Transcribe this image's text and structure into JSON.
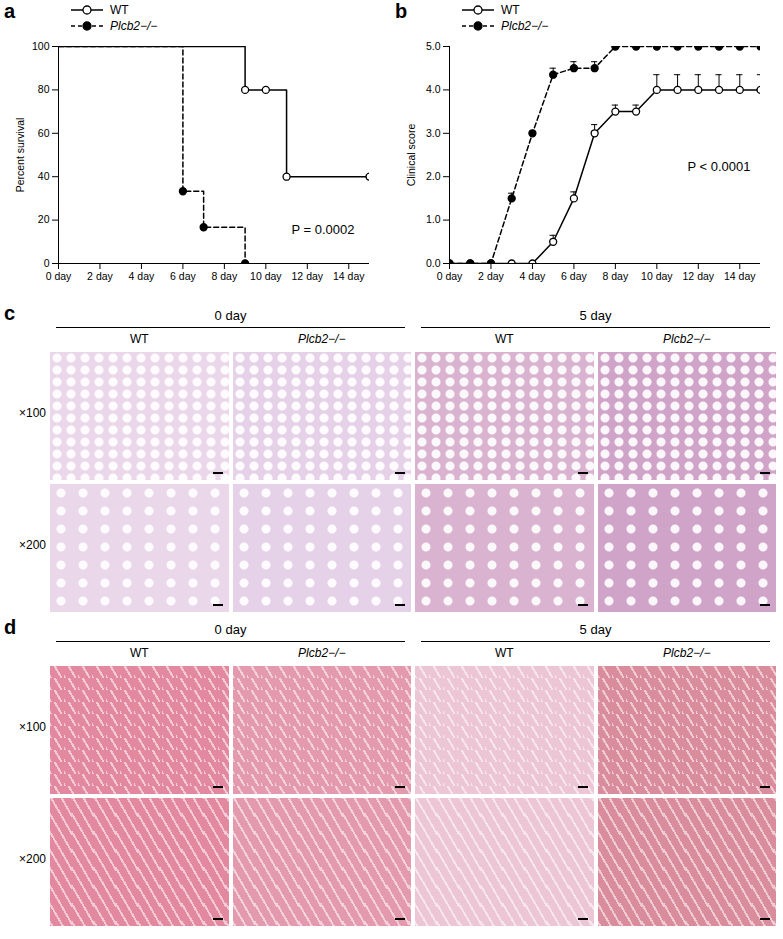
{
  "chart_data": [
    {
      "label": "a",
      "type": "survival",
      "ylabel": "Percent survival",
      "xlim": [
        0,
        15
      ],
      "xticks": [
        {
          "value": 0,
          "label": "0 day"
        },
        {
          "value": 2,
          "label": "2 day"
        },
        {
          "value": 4,
          "label": "4 day"
        },
        {
          "value": 6,
          "label": "6 day"
        },
        {
          "value": 8,
          "label": "8 day"
        },
        {
          "value": 10,
          "label": "10 day"
        },
        {
          "value": 12,
          "label": "12 day"
        },
        {
          "value": 14,
          "label": "14 day"
        }
      ],
      "ylim": [
        0,
        100
      ],
      "yticks": [
        0,
        20,
        40,
        60,
        80,
        100
      ],
      "legend": "top-left",
      "annotations": [
        "P = 0.0002"
      ],
      "series": [
        {
          "name": "WT",
          "color": "#000000",
          "marker": "open_circle",
          "line_style": "solid",
          "x": [
            0,
            9,
            10,
            11,
            15
          ],
          "values": [
            100,
            80,
            80,
            40,
            40
          ]
        },
        {
          "name": "Plcb2−/−",
          "color": "#000000",
          "marker": "filled_circle",
          "line_style": "dashed",
          "x": [
            0,
            6,
            7,
            9
          ],
          "values": [
            100,
            33.3,
            16.7,
            0
          ]
        }
      ]
    },
    {
      "label": "b",
      "type": "line",
      "ylabel": "Clinical score",
      "xlim": [
        0,
        15
      ],
      "xticks": [
        {
          "value": 0,
          "label": "0 day"
        },
        {
          "value": 2,
          "label": "2 day"
        },
        {
          "value": 4,
          "label": "4 day"
        },
        {
          "value": 6,
          "label": "6 day"
        },
        {
          "value": 8,
          "label": "8 day"
        },
        {
          "value": 10,
          "label": "10 day"
        },
        {
          "value": 12,
          "label": "12 day"
        },
        {
          "value": 14,
          "label": "14 day"
        }
      ],
      "ylim": [
        0,
        5
      ],
      "yticks": [
        0,
        1,
        2,
        3,
        4,
        5
      ],
      "legend": "top-left",
      "annotations": [
        "P < 0.0001"
      ],
      "series": [
        {
          "name": "WT",
          "color": "#000000",
          "marker": "open_circle",
          "line_style": "solid",
          "x": [
            0,
            1,
            2,
            3,
            4,
            5,
            6,
            7,
            8,
            9,
            10,
            11,
            12,
            13,
            14,
            15
          ],
          "values": [
            0,
            0,
            0,
            0,
            0,
            0.5,
            1.5,
            3,
            3.5,
            3.5,
            4,
            4,
            4,
            4,
            4,
            4
          ],
          "errors": [
            0,
            0,
            0,
            0,
            0,
            0.15,
            0.15,
            0.2,
            0.15,
            0.15,
            0.35,
            0.35,
            0.35,
            0.35,
            0.35,
            0.35
          ]
        },
        {
          "name": "Plcb2−/−",
          "color": "#000000",
          "marker": "filled_circle",
          "line_style": "dashed",
          "x": [
            0,
            1,
            2,
            3,
            4,
            5,
            6,
            7,
            8,
            9,
            10,
            11,
            12,
            13,
            14,
            15
          ],
          "values": [
            0,
            0,
            0,
            1.5,
            3,
            4.35,
            4.5,
            4.5,
            5,
            5,
            5,
            5,
            5,
            5,
            5,
            5
          ],
          "errors": [
            0,
            0,
            0,
            0.12,
            0,
            0.15,
            0.15,
            0.15,
            0,
            0,
            0,
            0,
            0,
            0,
            0,
            0
          ]
        }
      ]
    }
  ],
  "image_panels": [
    {
      "label": "c",
      "groups": [
        "0 day",
        "5 day"
      ],
      "columns": [
        "WT",
        "Plcb2−/−"
      ],
      "rows": [
        "×100",
        "×200"
      ]
    },
    {
      "label": "d",
      "groups": [
        "0 day",
        "5 day"
      ],
      "columns": [
        "WT",
        "Plcb2−/−"
      ],
      "rows": [
        "×100",
        "×200"
      ]
    }
  ]
}
